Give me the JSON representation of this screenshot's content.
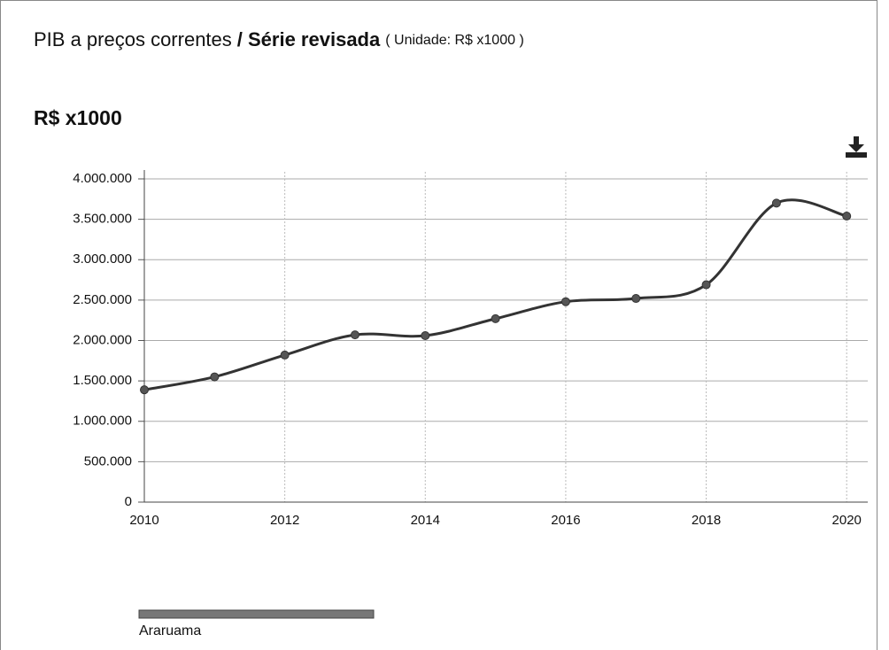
{
  "chart_data": {
    "type": "line",
    "title": "PIB a preços correntes",
    "title_emphasis": "/ Série revisada",
    "unit_note": "( Unidade: R$ x1000 )",
    "y_label": "R$ x1000",
    "x": [
      2010,
      2011,
      2012,
      2013,
      2014,
      2015,
      2016,
      2017,
      2018,
      2019,
      2020
    ],
    "series": [
      {
        "name": "Araruama",
        "color": "#333333",
        "values": [
          1390000,
          1550000,
          1820000,
          2070000,
          2060000,
          2270000,
          2480000,
          2520000,
          2690000,
          3700000,
          3540000
        ]
      }
    ],
    "xlim": [
      2010,
      2020.3
    ],
    "xticks": [
      2010,
      2012,
      2014,
      2016,
      2018,
      2020
    ],
    "ylim": [
      0,
      4000000
    ],
    "yticks": [
      0,
      {
        "value": 500000,
        "label": "500.000"
      },
      {
        "value": 1000000,
        "label": "1.000.000"
      },
      {
        "value": 1500000,
        "label": "1.500.000"
      },
      {
        "value": 2000000,
        "label": "2.000.000"
      },
      {
        "value": 2500000,
        "label": "2.500.000"
      },
      {
        "value": 3000000,
        "label": "3.000.000"
      },
      {
        "value": 3500000,
        "label": "3.500.000"
      },
      {
        "value": 4000000,
        "label": "4.000.000"
      }
    ],
    "grid": true
  }
}
